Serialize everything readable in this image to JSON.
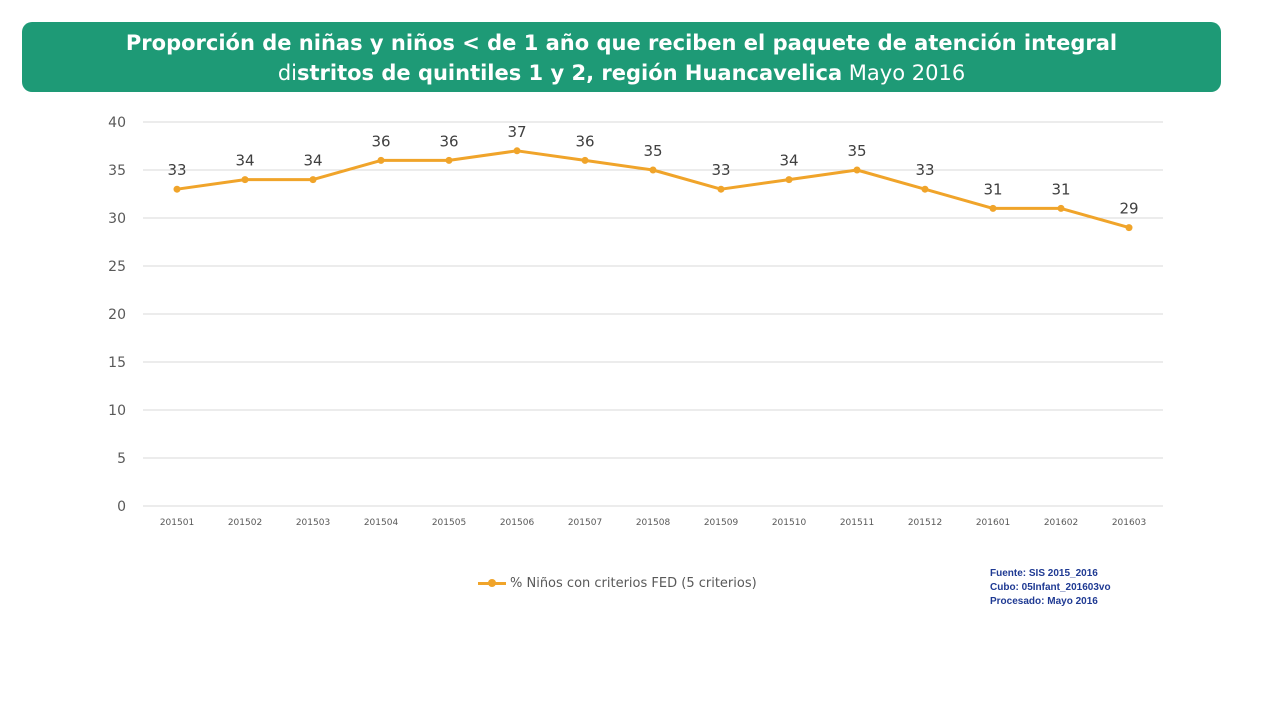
{
  "title": {
    "line1": "Proporción de niñas y niños < de 1 año que reciben el paquete de atención integral",
    "line2_prefix": "di",
    "line2_bold": "stritos de quintiles 1 y 2, región Huancavelica",
    "line2_suffix": "  Mayo 2016"
  },
  "colors": {
    "banner": "#1e9a76",
    "series": "#f0a42a",
    "grid": "#d9d9d9",
    "axis_text": "#595959",
    "source_text": "#1f3a93"
  },
  "chart_data": {
    "type": "line",
    "title": "Proporción de niñas y niños < de 1 año que reciben el paquete de atención integral distritos de quintiles 1 y 2, región Huancavelica Mayo 2016",
    "xlabel": "",
    "ylabel": "",
    "categories": [
      "201501",
      "201502",
      "201503",
      "201504",
      "201505",
      "201506",
      "201507",
      "201508",
      "201509",
      "201510",
      "201511",
      "201512",
      "201601",
      "201602",
      "201603"
    ],
    "series": [
      {
        "name": "% Niños con criterios FED (5 criterios)",
        "values": [
          33,
          34,
          34,
          36,
          36,
          37,
          36,
          35,
          33,
          34,
          35,
          33,
          31,
          31,
          29
        ],
        "labels": [
          "33",
          "34",
          "34",
          "36",
          "36",
          "37",
          "36",
          "35",
          "33",
          "34",
          "35",
          "33",
          "31",
          "31",
          "29"
        ]
      }
    ],
    "ylim": [
      0,
      40
    ],
    "yticks": [
      "0",
      "5",
      "10",
      "15",
      "20",
      "25",
      "30",
      "35",
      "40"
    ],
    "grid": true,
    "legend_position": "bottom"
  },
  "legend": {
    "label": "% Niños con criterios FED (5 criterios)"
  },
  "source": {
    "line1": "Fuente: SIS 2015_2016",
    "line2": "Cubo: 05Infant_201603vo",
    "line3": "Procesado:   Mayo 2016"
  }
}
